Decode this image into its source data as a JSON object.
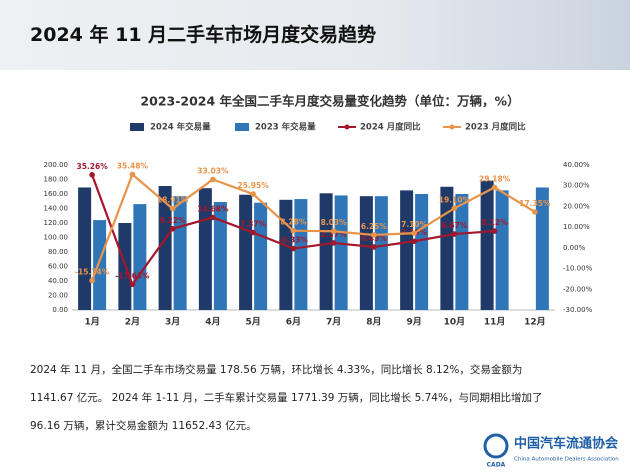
{
  "header": {
    "title": "2024 年 11 月二手车市场月度交易趋势"
  },
  "chart_data": {
    "type": "bar",
    "title": "2023-2024 年全国二手车月度交易量变化趋势（单位：万辆，%）",
    "categories": [
      "1月",
      "2月",
      "3月",
      "4月",
      "5月",
      "6月",
      "7月",
      "8月",
      "9月",
      "10月",
      "11月",
      "12月"
    ],
    "series": [
      {
        "name": "2024 年交易量",
        "type": "bar",
        "color": "#1f3a68",
        "values": [
          169,
          120,
          171,
          168,
          159,
          152,
          161,
          157,
          165,
          170,
          178.56,
          null
        ]
      },
      {
        "name": "2023 年交易量",
        "type": "bar",
        "color": "#2f76b8",
        "values": [
          124,
          146,
          157,
          149,
          148,
          153,
          158,
          157,
          160,
          160,
          165,
          169
        ]
      },
      {
        "name": "2024 月度同比",
        "type": "line",
        "axis": "y2",
        "color": "#a3182a",
        "values": [
          35.26,
          -17.63,
          9.22,
          14.68,
          7.37,
          -0.33,
          2.37,
          0.43,
          3.19,
          6.67,
          8.12,
          null
        ],
        "value_labels": [
          "35.26%",
          "-17.63%",
          "9.22%",
          "14.68%",
          "7.37%",
          "-0.33%",
          "2.37%",
          "0.43%",
          "3.19%",
          "6.67%",
          "8.12%",
          null
        ]
      },
      {
        "name": "2023 月度同比",
        "type": "line",
        "axis": "y2",
        "color": "#e8944a",
        "values": [
          -15.74,
          35.48,
          18.91,
          33.03,
          25.95,
          8.28,
          8.03,
          6.25,
          7.1,
          19.1,
          29.18,
          17.35
        ],
        "value_labels": [
          "-15.74%",
          "35.48%",
          "18.91%",
          "33.03%",
          "25.95%",
          "8.28%",
          "8.03%",
          "6.25%",
          "7.10%",
          "19.10%",
          "29.18%",
          "17.35%"
        ]
      }
    ],
    "ylim": [
      0,
      200
    ],
    "yticks": [
      {
        "value": 0,
        "label": "0.00"
      },
      {
        "value": 20,
        "label": "20.00"
      },
      {
        "value": 40,
        "label": "40.00"
      },
      {
        "value": 60,
        "label": "60.00"
      },
      {
        "value": 80,
        "label": "80.00"
      },
      {
        "value": 100,
        "label": "100.00"
      },
      {
        "value": 120,
        "label": "120.00"
      },
      {
        "value": 140,
        "label": "140.00"
      },
      {
        "value": 160,
        "label": "160.00"
      },
      {
        "value": 180,
        "label": "180.00"
      },
      {
        "value": 200,
        "label": "200.00"
      }
    ],
    "y2lim": [
      -30,
      40
    ],
    "y2ticks": [
      {
        "value": -30,
        "label": "-30.00%"
      },
      {
        "value": -20,
        "label": "-20.00%"
      },
      {
        "value": -10,
        "label": "-10.00%"
      },
      {
        "value": 0,
        "label": "0.00%"
      },
      {
        "value": 10,
        "label": "10.00%"
      },
      {
        "value": 20,
        "label": "20.00%"
      },
      {
        "value": 30,
        "label": "30.00%"
      },
      {
        "value": 40,
        "label": "40.00%"
      }
    ]
  },
  "body": {
    "lines": [
      "2024 年 11 月，全国二手车市场交易量 178.56 万辆，环比增长 4.33%，同比增长 8.12%，交易金额为",
      "1141.67 亿元。 2024 年 1-11 月，二手车累计交易量 1771.39 万辆，同比增长 5.74%，与同期相比增加了",
      "96.16 万辆，累计交易金额为 11652.43 亿元。"
    ]
  },
  "footer": {
    "logo_mark": "CADA",
    "logo_text": "中国汽车流通协会",
    "logo_subtext": "China Automobile Dealers Association"
  }
}
